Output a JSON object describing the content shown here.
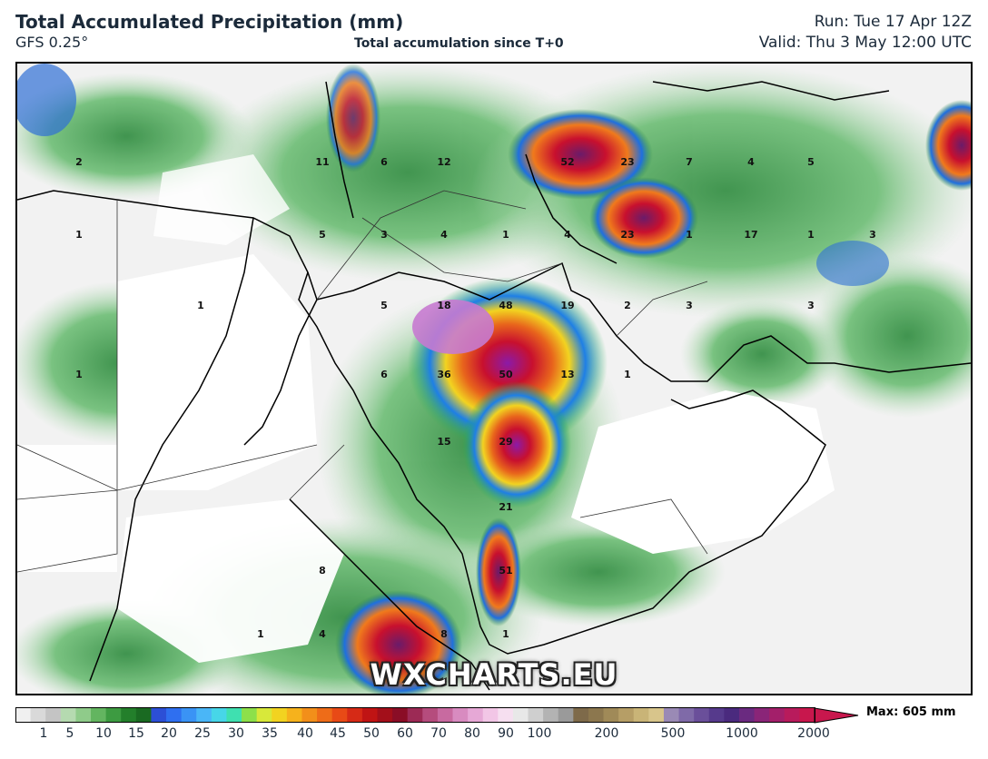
{
  "header": {
    "title": "Total Accumulated Precipitation (mm)",
    "model": "GFS 0.25°",
    "subtitle": "Total accumulation since T+0",
    "run": "Run: Tue 17 Apr 12Z",
    "valid": "Valid: Thu 3 May 12:00 UTC"
  },
  "watermark": "WXCHARTS.EU",
  "colorbar": {
    "ticks": [
      "1",
      "5",
      "10",
      "15",
      "20",
      "25",
      "30",
      "35",
      "40",
      "45",
      "50",
      "60",
      "70",
      "80",
      "90",
      "100",
      "200",
      "500",
      "1000",
      "2000"
    ],
    "max_label": "Max: 605 mm"
  },
  "map_values": [
    {
      "text": "2",
      "color": "#111"
    },
    {
      "text": "11",
      "color": "#111"
    },
    {
      "text": "6",
      "color": "#111"
    },
    {
      "text": "12",
      "color": "#111"
    },
    {
      "text": "52",
      "color": "#111"
    },
    {
      "text": "23",
      "color": "#111"
    },
    {
      "text": "7",
      "color": "#111"
    },
    {
      "text": "4",
      "color": "#111"
    },
    {
      "text": "5",
      "color": "#111"
    },
    {
      "text": "1",
      "color": "#111"
    },
    {
      "text": "5",
      "color": "#111"
    },
    {
      "text": "3",
      "color": "#111"
    },
    {
      "text": "4",
      "color": "#111"
    },
    {
      "text": "1",
      "color": "#111"
    },
    {
      "text": "4",
      "color": "#111"
    },
    {
      "text": "23",
      "color": "#111"
    },
    {
      "text": "1",
      "color": "#111"
    },
    {
      "text": "17",
      "color": "#111"
    },
    {
      "text": "1",
      "color": "#111"
    },
    {
      "text": "3",
      "color": "#111"
    },
    {
      "text": "1",
      "color": "#111"
    },
    {
      "text": "5",
      "color": "#111"
    },
    {
      "text": "18",
      "color": "#111"
    },
    {
      "text": "48",
      "color": "#111"
    },
    {
      "text": "19",
      "color": "#111"
    },
    {
      "text": "2",
      "color": "#111"
    },
    {
      "text": "3",
      "color": "#111"
    },
    {
      "text": "3",
      "color": "#111"
    },
    {
      "text": "1",
      "color": "#111"
    },
    {
      "text": "6",
      "color": "#111"
    },
    {
      "text": "36",
      "color": "#111"
    },
    {
      "text": "50",
      "color": "#111"
    },
    {
      "text": "13",
      "color": "#111"
    },
    {
      "text": "1",
      "color": "#111"
    },
    {
      "text": "15",
      "color": "#111"
    },
    {
      "text": "29",
      "color": "#111"
    },
    {
      "text": "21",
      "color": "#111"
    },
    {
      "text": "8",
      "color": "#111"
    },
    {
      "text": "51",
      "color": "#111"
    },
    {
      "text": "1",
      "color": "#111"
    },
    {
      "text": "4",
      "color": "#111"
    },
    {
      "text": "8",
      "color": "#111"
    },
    {
      "text": "1",
      "color": "#111"
    }
  ]
}
